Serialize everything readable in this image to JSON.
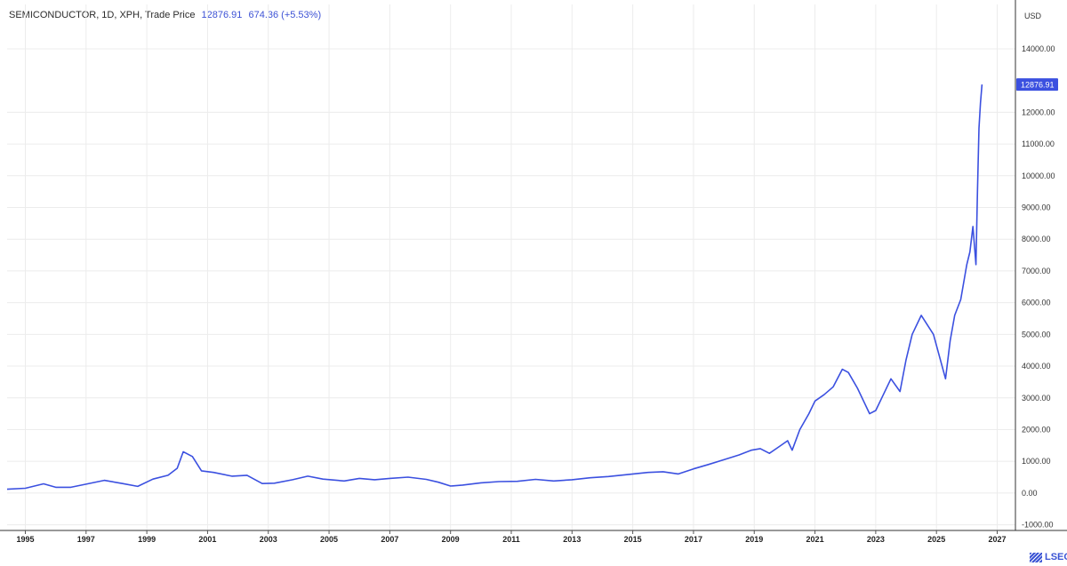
{
  "header": {
    "instrument": "SEMICONDUCTOR, 1D, XPH, Trade Price",
    "price": "12876.91",
    "change": "674.36 (+5.53%)"
  },
  "axis": {
    "currency_label": "USD"
  },
  "last_price_badge": "12876.91",
  "brand": {
    "name": "LSEG"
  },
  "colors": {
    "line": "#3b50e0",
    "badge": "#3b50e0",
    "grid": "#ececec"
  },
  "chart_data": {
    "type": "line",
    "title": "",
    "xlabel": "",
    "ylabel": "USD",
    "grid": true,
    "xlim": [
      1994.4,
      2027.6
    ],
    "ylim": [
      -1180,
      15400
    ],
    "x_ticks": [
      1995,
      1997,
      1999,
      2001,
      2003,
      2005,
      2007,
      2009,
      2011,
      2013,
      2015,
      2017,
      2019,
      2021,
      2023,
      2025,
      2027
    ],
    "y_ticks": [
      -1000,
      0,
      1000,
      2000,
      3000,
      4000,
      5000,
      6000,
      7000,
      8000,
      9000,
      10000,
      11000,
      12000,
      14000
    ],
    "y_tick_labels": [
      "-1000.00",
      "0.00",
      "1000.00",
      "2000.00",
      "3000.00",
      "4000.00",
      "5000.00",
      "6000.00",
      "7000.00",
      "8000.00",
      "9000.00",
      "10000.00",
      "11000.00",
      "12000.00",
      "14000.00"
    ],
    "series": [
      {
        "name": "",
        "x": [
          1994.4,
          1995.0,
          1995.6,
          1996.0,
          1996.5,
          1997.0,
          1997.6,
          1998.2,
          1998.7,
          1999.2,
          1999.7,
          2000.0,
          2000.2,
          2000.5,
          2000.8,
          2001.2,
          2001.8,
          2002.3,
          2002.8,
          2003.2,
          2003.8,
          2004.3,
          2004.8,
          2005.5,
          2006.0,
          2006.5,
          2007.0,
          2007.6,
          2008.2,
          2008.6,
          2009.0,
          2009.4,
          2010.0,
          2010.6,
          2011.2,
          2011.8,
          2012.4,
          2013.0,
          2013.6,
          2014.2,
          2014.8,
          2015.5,
          2016.0,
          2016.5,
          2017.0,
          2017.5,
          2018.0,
          2018.5,
          2018.9,
          2019.2,
          2019.5,
          2019.8,
          2020.1,
          2020.25,
          2020.5,
          2020.8,
          2021.0,
          2021.3,
          2021.6,
          2021.9,
          2022.1,
          2022.4,
          2022.6,
          2022.8,
          2023.0,
          2023.2,
          2023.5,
          2023.8,
          2024.0,
          2024.2,
          2024.5,
          2024.7,
          2024.9,
          2025.1,
          2025.3,
          2025.45,
          2025.6,
          2025.8,
          2026.0,
          2026.1,
          2026.2,
          2026.3,
          2026.35,
          2026.4,
          2026.45,
          2026.5
        ],
        "y": [
          120,
          150,
          290,
          180,
          180,
          280,
          400,
          300,
          210,
          440,
          560,
          780,
          1300,
          1150,
          700,
          650,
          530,
          560,
          300,
          310,
          420,
          530,
          440,
          380,
          460,
          420,
          460,
          500,
          430,
          340,
          220,
          250,
          320,
          360,
          370,
          430,
          380,
          420,
          480,
          520,
          580,
          650,
          670,
          600,
          760,
          900,
          1050,
          1200,
          1350,
          1400,
          1250,
          1450,
          1650,
          1350,
          2000,
          2500,
          2900,
          3100,
          3350,
          3900,
          3800,
          3300,
          2900,
          2500,
          2600,
          3000,
          3600,
          3200,
          4200,
          5000,
          5600,
          5300,
          5000,
          4300,
          3600,
          4800,
          5600,
          6100,
          7200,
          7600,
          8400,
          7200,
          9500,
          11500,
          12300,
          12877
        ]
      }
    ]
  }
}
